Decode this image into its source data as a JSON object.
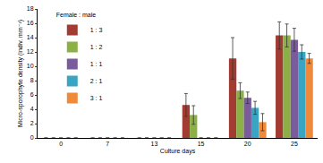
{
  "chart_data": {
    "type": "bar",
    "x_label": "Culture days",
    "y_label": "Micro-sporophyte density (indiv. mm⁻²)",
    "legend_title": "Female : male",
    "legend": "upper left",
    "categories": [
      "0",
      "7",
      "13",
      "15",
      "20",
      "25"
    ],
    "series": [
      {
        "name": "1 : 3",
        "color": "#a23b32",
        "values": [
          0,
          0,
          0,
          4.6,
          11.1,
          14.3
        ],
        "errors": [
          0,
          0,
          0,
          1.6,
          2.9,
          1.9
        ]
      },
      {
        "name": "1 : 2",
        "color": "#8cb045",
        "values": [
          0,
          0,
          0,
          3.2,
          6.6,
          14.3
        ],
        "errors": [
          0,
          0,
          0,
          1.3,
          1.1,
          1.6
        ]
      },
      {
        "name": "1 : 1",
        "color": "#7a5c9c",
        "values": [
          0,
          0,
          0,
          0,
          5.6,
          13.7
        ],
        "errors": [
          0,
          0,
          0,
          0,
          0.8,
          1.6
        ]
      },
      {
        "name": "2 : 1",
        "color": "#3aa5c2",
        "values": [
          0,
          0,
          0,
          0,
          4.2,
          12.0
        ],
        "errors": [
          0,
          0,
          0,
          0,
          0.9,
          1.0
        ]
      },
      {
        "name": "3 : 1",
        "color": "#ef8a3a",
        "values": [
          0,
          0,
          0,
          0,
          2.2,
          11.1
        ],
        "errors": [
          0,
          0,
          0,
          0,
          1.2,
          0.7
        ]
      }
    ],
    "ylim": [
      0,
      18
    ],
    "yticks": [
      0,
      2,
      4,
      6,
      8,
      10,
      12,
      14,
      16,
      18
    ],
    "grid": false
  }
}
